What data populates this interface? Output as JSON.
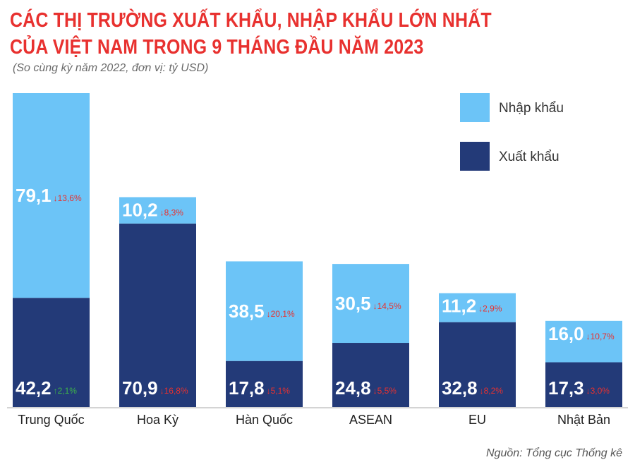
{
  "header": {
    "title_line1": "CÁC THỊ TRƯỜNG XUẤT KHẨU, NHẬP KHẨU LỚN NHẤT",
    "title_line2": "CỦA VIỆT NAM TRONG 9 THÁNG ĐẦU NĂM 2023",
    "subtitle": "(So cùng kỳ năm 2022, đơn vị: tỷ USD)"
  },
  "footer": {
    "source": "Nguồn: Tổng cục Thống kê"
  },
  "colors": {
    "import": "#6cc4f7",
    "export": "#233a78",
    "down": "#e8312f",
    "up": "#3db34a",
    "axis": "#aaaaaa"
  },
  "chart_data": {
    "type": "bar",
    "stacked": true,
    "categories": [
      "Trung Quốc",
      "Hoa Kỳ",
      "Hàn Quốc",
      "ASEAN",
      "EU",
      "Nhật Bản"
    ],
    "series": [
      {
        "name": "Xuất khẩu",
        "values": [
          42.2,
          70.9,
          17.8,
          24.8,
          32.8,
          17.3
        ],
        "labels": [
          "42,2",
          "70,9",
          "17,8",
          "24,8",
          "32,8",
          "17,3"
        ],
        "change_labels": [
          "↑2,1%",
          "↓16,8%",
          "↓5,1%",
          "↓5,5%",
          "↓8,2%",
          "↓3,0%"
        ],
        "change_direction": [
          "up",
          "down",
          "down",
          "down",
          "down",
          "down"
        ]
      },
      {
        "name": "Nhập khẩu",
        "values": [
          79.1,
          10.2,
          38.5,
          30.5,
          11.2,
          16.0
        ],
        "labels": [
          "79,1",
          "10,2",
          "38,5",
          "30,5",
          "11,2",
          "16,0"
        ],
        "change_labels": [
          "↓13,6%",
          "↓8,3%",
          "↓20,1%",
          "↓14,5%",
          "↓2,9%",
          "↓10,7%"
        ],
        "change_direction": [
          "down",
          "down",
          "down",
          "down",
          "down",
          "down"
        ]
      }
    ],
    "legend": {
      "placement": "top-right",
      "entries": [
        "Nhập khẩu",
        "Xuất khẩu"
      ]
    },
    "ylim": [
      0,
      121.3
    ],
    "grid": false
  }
}
